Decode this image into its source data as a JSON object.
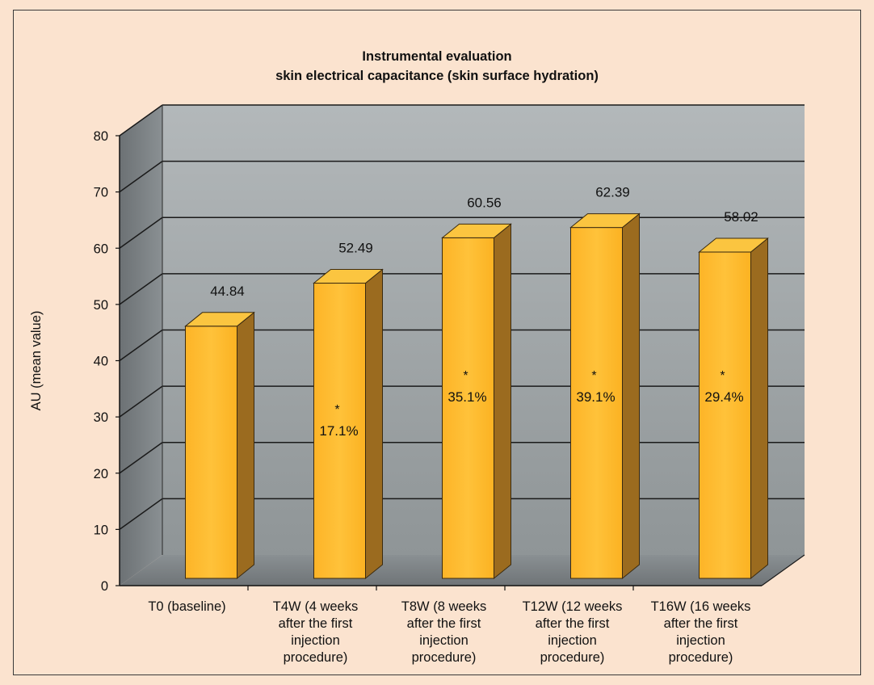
{
  "chart_data": {
    "type": "bar",
    "title": "Instrumental evaluation",
    "subtitle": "skin electrical capacitance (skin surface hydration)",
    "ylabel": "AU (mean value)",
    "xlabel": "",
    "ylim": [
      0,
      80
    ],
    "yticks": [
      0,
      10,
      20,
      30,
      40,
      50,
      60,
      70,
      80
    ],
    "categories": [
      [
        "T0 (baseline)"
      ],
      [
        "T4W (4 weeks",
        "after the first",
        "injection",
        "procedure)"
      ],
      [
        "T8W (8 weeks",
        "after the first",
        "injection",
        "procedure)"
      ],
      [
        "T12W (12 weeks",
        "after the first",
        "injection",
        "procedure)"
      ],
      [
        "T16W (16 weeks",
        "after the first",
        "injection",
        "procedure)"
      ]
    ],
    "values": [
      44.84,
      52.49,
      60.56,
      62.39,
      58.02
    ],
    "value_labels": [
      "44.84",
      "52.49",
      "60.56",
      "62.39",
      "58.02"
    ],
    "annotations": [
      null,
      {
        "mark": "*",
        "text": "17.1%"
      },
      {
        "mark": "*",
        "text": "35.1%"
      },
      {
        "mark": "*",
        "text": "39.1%"
      },
      {
        "mark": "*",
        "text": "29.4%"
      }
    ],
    "grid": true,
    "style": "3d",
    "colors": {
      "bar_front": "#fdb92a",
      "bar_top": "#fbc540",
      "bar_side": "#9b6b1f",
      "wall": "#9aa0a3",
      "floor": "#80868a"
    }
  }
}
